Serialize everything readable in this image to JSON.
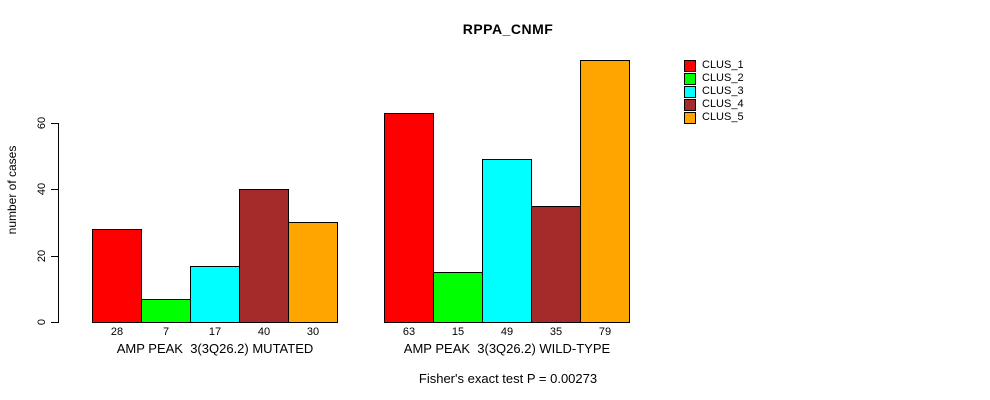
{
  "title": "RPPA_CNMF",
  "footer": "Fisher's exact test P = 0.00273",
  "chart_data": {
    "type": "bar",
    "title": "RPPA_CNMF",
    "xlabel": "",
    "ylabel": "number of cases",
    "ylim": [
      0,
      80
    ],
    "yticks": [
      0,
      20,
      40,
      60
    ],
    "grid": false,
    "legend_position": "right",
    "annotation": "Fisher's exact test P = 0.00273",
    "legend": [
      {
        "label": "CLUS_1",
        "color": "#FF0000"
      },
      {
        "label": "CLUS_2",
        "color": "#00FF00"
      },
      {
        "label": "CLUS_3",
        "color": "#00FFFF"
      },
      {
        "label": "CLUS_4",
        "color": "#A52A2A"
      },
      {
        "label": "CLUS_5",
        "color": "#FFA500"
      }
    ],
    "groups": [
      {
        "label": "AMP PEAK  3(3Q26.2) MUTATED",
        "values": [
          28,
          7,
          17,
          40,
          30
        ]
      },
      {
        "label": "AMP PEAK  3(3Q26.2) WILD-TYPE",
        "values": [
          63,
          15,
          49,
          35,
          79
        ]
      }
    ]
  }
}
